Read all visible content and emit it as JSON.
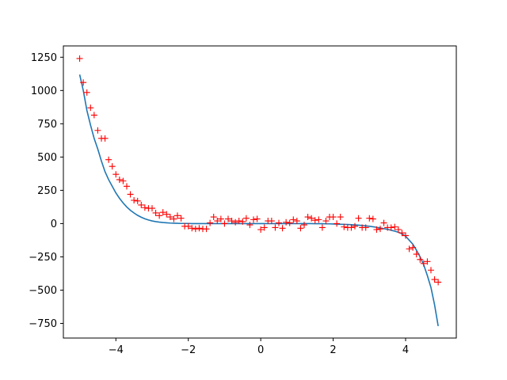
{
  "chart_data": {
    "type": "scatter",
    "title": "",
    "xlabel": "",
    "ylabel": "",
    "xlim": [
      -5.45,
      5.4
    ],
    "ylim": [
      -860,
      1335
    ],
    "xticks": [
      -4,
      -2,
      0,
      2,
      4
    ],
    "xtick_labels": [
      "−4",
      "−2",
      "0",
      "2",
      "4"
    ],
    "yticks": [
      -750,
      -500,
      -250,
      0,
      250,
      500,
      750,
      1000,
      1250
    ],
    "ytick_labels": [
      "−750",
      "−500",
      "−250",
      "0",
      "250",
      "500",
      "750",
      "1000",
      "1250"
    ],
    "grid": false,
    "legend": "none",
    "series": [
      {
        "kind": "markers",
        "marker": "plus",
        "color": "#ff0000",
        "x": [
          -5.0,
          -4.9,
          -4.8,
          -4.7,
          -4.6,
          -4.5,
          -4.4,
          -4.3,
          -4.2,
          -4.1,
          -4.0,
          -3.9,
          -3.8,
          -3.7,
          -3.6,
          -3.5,
          -3.4,
          -3.3,
          -3.2,
          -3.1,
          -3.0,
          -2.9,
          -2.8,
          -2.7,
          -2.6,
          -2.5,
          -2.4,
          -2.3,
          -2.2,
          -2.1,
          -2.0,
          -1.9,
          -1.8,
          -1.7,
          -1.6,
          -1.5,
          -1.4,
          -1.3,
          -1.2,
          -1.1,
          -1.0,
          -0.9,
          -0.8,
          -0.7,
          -0.6,
          -0.5,
          -0.4,
          -0.3,
          -0.2,
          -0.1,
          0.0,
          0.1,
          0.2,
          0.3,
          0.4,
          0.5,
          0.6,
          0.7,
          0.8,
          0.9,
          1.0,
          1.1,
          1.2,
          1.3,
          1.4,
          1.5,
          1.6,
          1.7,
          1.8,
          1.9,
          2.0,
          2.1,
          2.2,
          2.3,
          2.4,
          2.5,
          2.6,
          2.7,
          2.8,
          2.9,
          3.0,
          3.1,
          3.2,
          3.3,
          3.4,
          3.5,
          3.6,
          3.7,
          3.8,
          3.9,
          4.0,
          4.1,
          4.2,
          4.3,
          4.4,
          4.5,
          4.6,
          4.7,
          4.8,
          4.9
        ],
        "y": [
          1240,
          1060,
          985,
          870,
          815,
          700,
          640,
          640,
          480,
          430,
          370,
          330,
          320,
          280,
          220,
          175,
          170,
          140,
          120,
          115,
          115,
          80,
          60,
          85,
          70,
          50,
          35,
          60,
          40,
          -20,
          -20,
          -35,
          -40,
          -35,
          -40,
          -40,
          5,
          50,
          20,
          35,
          0,
          35,
          20,
          10,
          20,
          15,
          40,
          -10,
          30,
          35,
          -45,
          -30,
          20,
          20,
          -30,
          5,
          -35,
          10,
          5,
          30,
          20,
          -35,
          -10,
          50,
          40,
          25,
          30,
          -30,
          20,
          50,
          50,
          0,
          50,
          -25,
          -30,
          -30,
          -20,
          40,
          -30,
          -30,
          40,
          35,
          -45,
          -40,
          5,
          -30,
          -30,
          -25,
          -45,
          -70,
          -90,
          -190,
          -180,
          -230,
          -270,
          -300,
          -285,
          -350,
          -420,
          -440
        ]
      },
      {
        "kind": "line",
        "color": "#1f77b4",
        "x": [
          -5.0,
          -4.9,
          -4.8,
          -4.7,
          -4.6,
          -4.5,
          -4.4,
          -4.3,
          -4.2,
          -4.1,
          -4.0,
          -3.9,
          -3.8,
          -3.7,
          -3.6,
          -3.5,
          -3.4,
          -3.3,
          -3.2,
          -3.1,
          -3.0,
          -2.9,
          -2.8,
          -2.7,
          -2.6,
          -2.5,
          -2.4,
          -2.3,
          -2.2,
          -2.1,
          -2.0,
          -1.9,
          -1.8,
          -1.7,
          -1.6,
          -1.5,
          -1.4,
          -1.3,
          -1.2,
          -1.1,
          -1.0,
          -0.9,
          -0.8,
          -0.7,
          -0.6,
          -0.5,
          -0.4,
          -0.3,
          -0.2,
          -0.1,
          0.0,
          0.1,
          0.2,
          0.3,
          0.4,
          0.5,
          0.6,
          0.7,
          0.8,
          0.9,
          1.0,
          1.1,
          1.2,
          1.3,
          1.4,
          1.5,
          1.6,
          1.7,
          1.8,
          1.9,
          2.0,
          2.1,
          2.2,
          2.3,
          2.4,
          2.5,
          2.6,
          2.7,
          2.8,
          2.9,
          3.0,
          3.1,
          3.2,
          3.3,
          3.4,
          3.5,
          3.6,
          3.7,
          3.8,
          3.9,
          4.0,
          4.1,
          4.2,
          4.3,
          4.4,
          4.5,
          4.6,
          4.7,
          4.8,
          4.9
        ],
        "y": [
          1120,
          1000,
          850,
          740,
          640,
          560,
          470,
          390,
          330,
          280,
          230,
          190,
          155,
          125,
          100,
          80,
          62,
          48,
          36,
          27,
          20,
          15,
          11,
          8,
          6,
          4,
          3,
          2,
          1,
          1,
          1,
          0,
          0,
          0,
          0,
          0,
          0,
          0,
          0,
          0,
          0,
          0,
          0,
          0,
          0,
          0,
          0,
          0,
          0,
          0,
          0,
          0,
          0,
          0,
          0,
          0,
          0,
          0,
          0,
          0,
          0,
          0,
          0,
          0,
          0,
          -1,
          -1,
          -1,
          -2,
          -2,
          -3,
          -4,
          -5,
          -6,
          -7,
          -8,
          -10,
          -12,
          -14,
          -17,
          -20,
          -24,
          -28,
          -33,
          -38,
          -43,
          -50,
          -57,
          -65,
          -76,
          -95,
          -125,
          -155,
          -200,
          -250,
          -310,
          -390,
          -480,
          -610,
          -770
        ]
      }
    ]
  }
}
